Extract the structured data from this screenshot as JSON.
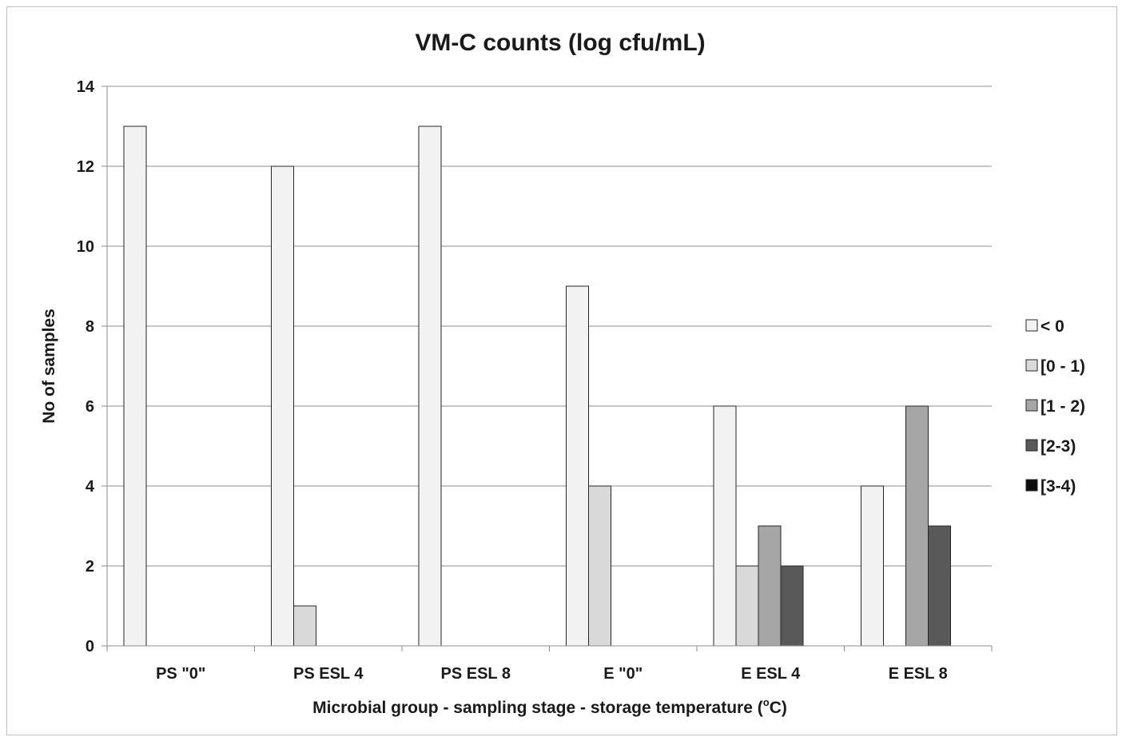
{
  "chart_data": {
    "type": "bar",
    "title": "VM-C counts (log cfu/mL)",
    "xlabel_prefix": "Microbial group - sampling stage - storage temperature (",
    "xlabel_degree": "o",
    "xlabel_suffix": "C)",
    "ylabel": "No of samples",
    "ylim": [
      0,
      14
    ],
    "yticks": [
      "0",
      "2",
      "4",
      "6",
      "8",
      "10",
      "12",
      "14"
    ],
    "grid": true,
    "legend_position": "right",
    "categories": [
      "PS \"0\"",
      "PS ESL 4",
      "PS ESL 8",
      "E \"0\"",
      "E ESL 4",
      "E ESL 8"
    ],
    "series": [
      {
        "name": "< 0",
        "color": "#f2f2f2",
        "values": [
          13,
          12,
          13,
          9,
          6,
          4
        ]
      },
      {
        "name": "[0 - 1)",
        "color": "#d9d9d9",
        "values": [
          0,
          1,
          0,
          4,
          2,
          0
        ]
      },
      {
        "name": "[1 - 2)",
        "color": "#a6a6a6",
        "values": [
          0,
          0,
          0,
          0,
          3,
          6
        ]
      },
      {
        "name": "[2-3)",
        "color": "#595959",
        "values": [
          0,
          0,
          0,
          0,
          2,
          3
        ]
      },
      {
        "name": "[3-4)",
        "color": "#0d0d0d",
        "values": [
          0,
          0,
          0,
          0,
          0,
          0
        ]
      }
    ]
  }
}
